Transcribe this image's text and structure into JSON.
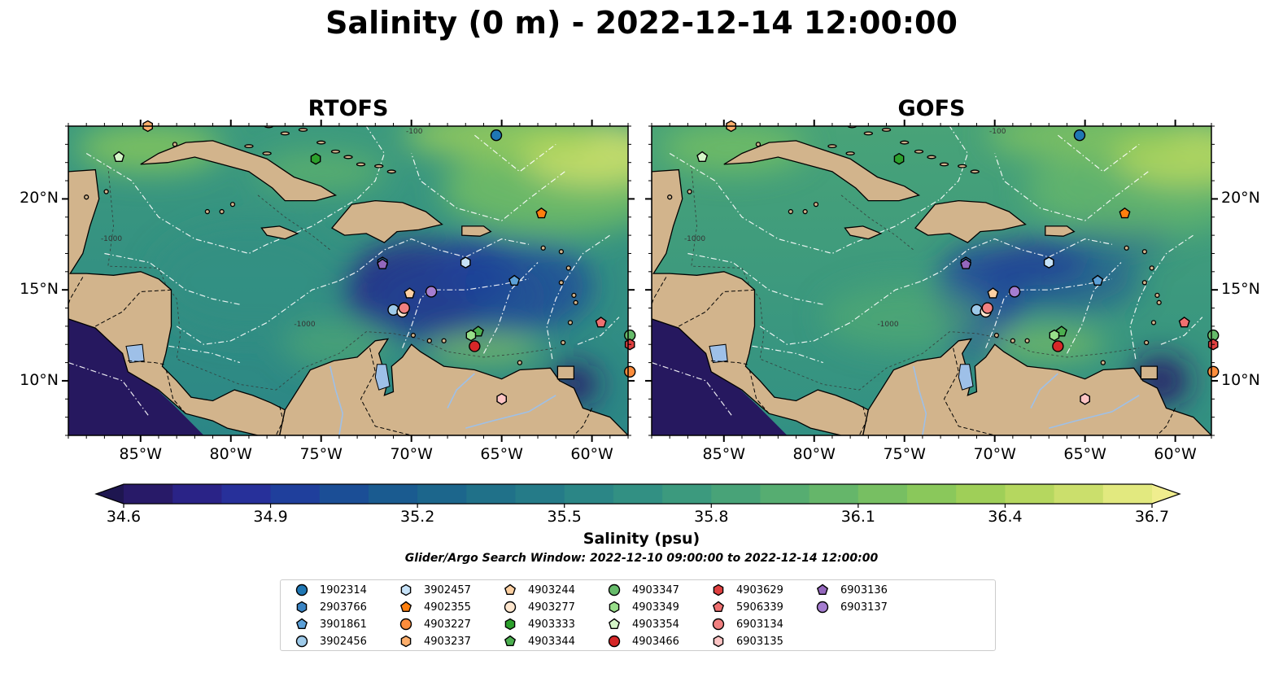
{
  "title": "Salinity (0 m) - 2022-12-14 12:00:00",
  "panels": [
    {
      "id": "rtofs",
      "title": "RTOFS"
    },
    {
      "id": "gofs",
      "title": "GOFS"
    }
  ],
  "map": {
    "lon_range": [
      -89,
      -58
    ],
    "lat_range": [
      7,
      24
    ],
    "x_ticks": [
      {
        "value": -85,
        "label": "85°W"
      },
      {
        "value": -80,
        "label": "80°W"
      },
      {
        "value": -75,
        "label": "75°W"
      },
      {
        "value": -70,
        "label": "70°W"
      },
      {
        "value": -65,
        "label": "65°W"
      },
      {
        "value": -60,
        "label": "60°W"
      }
    ],
    "y_ticks": [
      {
        "value": 20,
        "label": "20°N"
      },
      {
        "value": 15,
        "label": "15°N"
      },
      {
        "value": 10,
        "label": "10°N"
      }
    ],
    "contour_labels": [
      "-100",
      "-1000"
    ],
    "land_color": "#d2b48c",
    "deep_water_color": "#26185f"
  },
  "colorbar": {
    "label": "Salinity (psu)",
    "min": 34.6,
    "max": 36.7,
    "ticks": [
      "34.6",
      "34.9",
      "35.2",
      "35.5",
      "35.8",
      "36.1",
      "36.4",
      "36.7"
    ],
    "extend": "both",
    "colors": [
      "#281a68",
      "#2a2387",
      "#27309a",
      "#1f3f9c",
      "#1b4e96",
      "#1a5b90",
      "#1c668c",
      "#207189",
      "#257b88",
      "#2b8686",
      "#329083",
      "#3c9a7e",
      "#48a378",
      "#56ad71",
      "#65b66a",
      "#77bf62",
      "#8ac85b",
      "#9fcf58",
      "#b5d75f",
      "#cbdf6c",
      "#e2e97f"
    ],
    "ends": [
      "#1e1650",
      "#f0ed8e"
    ]
  },
  "search_window": "Glider/Argo Search Window: 2022-12-10 09:00:00 to 2022-12-14 12:00:00",
  "legend": [
    {
      "label": "1902314",
      "marker": "circle",
      "color": "#1f77b4",
      "lon": -65.3,
      "lat": 23.5
    },
    {
      "label": "2903766",
      "marker": "hexagon",
      "color": "#3a84c4",
      "lon": -71.6,
      "lat": 16.5
    },
    {
      "label": "3901861",
      "marker": "pentagon",
      "color": "#5ca0d8",
      "lon": -64.3,
      "lat": 15.5
    },
    {
      "label": "3902456",
      "marker": "circle",
      "color": "#9ecae9",
      "lon": -71.0,
      "lat": 13.9
    },
    {
      "label": "3902457",
      "marker": "hexagon",
      "color": "#c6e2f8",
      "lon": -67.0,
      "lat": 16.5
    },
    {
      "label": "4902355",
      "marker": "pentagon",
      "color": "#ff7f0e",
      "lon": -62.8,
      "lat": 19.2
    },
    {
      "label": "4903227",
      "marker": "circle",
      "color": "#fd8d3c",
      "lon": -57.9,
      "lat": 10.5
    },
    {
      "label": "4903237",
      "marker": "hexagon",
      "color": "#fdae6b",
      "lon": -84.6,
      "lat": 24.0
    },
    {
      "label": "4903244",
      "marker": "pentagon",
      "color": "#fdd0a2",
      "lon": -70.1,
      "lat": 14.8
    },
    {
      "label": "4903277",
      "marker": "circle",
      "color": "#fee6ce",
      "lon": -70.5,
      "lat": 13.8
    },
    {
      "label": "4903333",
      "marker": "hexagon",
      "color": "#2ca02c",
      "lon": -75.3,
      "lat": 22.2
    },
    {
      "label": "4903344",
      "marker": "pentagon",
      "color": "#4caf50",
      "lon": -66.3,
      "lat": 12.7
    },
    {
      "label": "4903347",
      "marker": "circle",
      "color": "#66bb6a",
      "lon": -57.9,
      "lat": 12.5
    },
    {
      "label": "4903349",
      "marker": "hexagon",
      "color": "#98df8a",
      "lon": -66.7,
      "lat": 12.5
    },
    {
      "label": "4903354",
      "marker": "pentagon",
      "color": "#d5f5c8",
      "lon": -86.2,
      "lat": 22.3
    },
    {
      "label": "4903466",
      "marker": "circle",
      "color": "#d62728",
      "lon": -66.5,
      "lat": 11.9
    },
    {
      "label": "4903629",
      "marker": "hexagon",
      "color": "#e04040",
      "lon": -57.9,
      "lat": 12.0
    },
    {
      "label": "5906339",
      "marker": "pentagon",
      "color": "#f07070",
      "lon": -59.5,
      "lat": 13.2
    },
    {
      "label": "6903134",
      "marker": "circle",
      "color": "#f08080",
      "lon": -70.4,
      "lat": 14.0
    },
    {
      "label": "6903135",
      "marker": "hexagon",
      "color": "#fcc4c4",
      "lon": -65.0,
      "lat": 9.0
    },
    {
      "label": "6903136",
      "marker": "pentagon",
      "color": "#9467bd",
      "lon": -71.6,
      "lat": 16.4
    },
    {
      "label": "6903137",
      "marker": "circle",
      "color": "#a57dd0",
      "lon": -68.9,
      "lat": 14.9
    }
  ]
}
